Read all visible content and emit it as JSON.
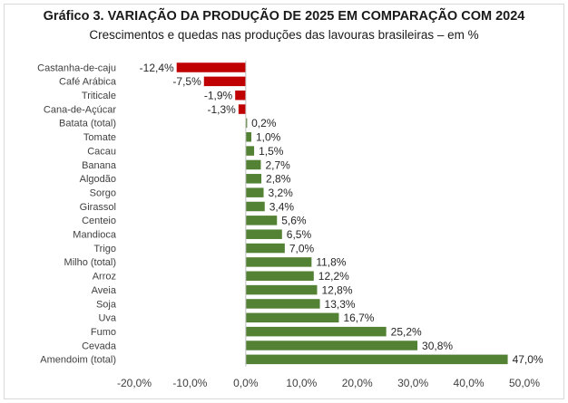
{
  "chart_data": {
    "type": "bar",
    "orientation": "horizontal",
    "title": "Gráfico 3. VARIAÇÃO DA PRODUÇÃO DE 2025 EM COMPARAÇÃO COM 2024",
    "subtitle": "Crescimentos e quedas nas produções das lavouras brasileiras – em %",
    "categories": [
      "Castanha-de-caju",
      "Café Arábica",
      "Triticale",
      "Cana-de-Açúcar",
      "Batata (total)",
      "Tomate",
      "Cacau",
      "Banana",
      "Algodão",
      "Sorgo",
      "Girassol",
      "Centeio",
      "Mandioca",
      "Trigo",
      "Milho (total)",
      "Arroz",
      "Aveia",
      "Soja",
      "Uva",
      "Fumo",
      "Cevada",
      "Amendoim (total)"
    ],
    "values": [
      -12.4,
      -7.5,
      -1.9,
      -1.3,
      0.2,
      1.0,
      1.5,
      2.7,
      2.8,
      3.2,
      3.4,
      5.6,
      6.5,
      7.0,
      11.8,
      12.2,
      12.8,
      13.3,
      16.7,
      25.2,
      30.8,
      47.0
    ],
    "value_labels": [
      "-12,4%",
      "-7,5%",
      "-1,9%",
      "-1,3%",
      "0,2%",
      "1,0%",
      "1,5%",
      "2,7%",
      "2,8%",
      "3,2%",
      "3,4%",
      "5,6%",
      "6,5%",
      "7,0%",
      "11,8%",
      "12,2%",
      "12,8%",
      "13,3%",
      "16,7%",
      "25,2%",
      "30,8%",
      "47,0%"
    ],
    "xlim": [
      -20,
      50
    ],
    "x_ticks": [
      -20,
      -10,
      0,
      10,
      20,
      30,
      40,
      50
    ],
    "x_tick_labels": [
      "-20,0%",
      "-10,0%",
      "0,0%",
      "10,0%",
      "20,0%",
      "30,0%",
      "40,0%",
      "50,0%"
    ],
    "xlabel": "",
    "ylabel": "",
    "grid": false,
    "legend": "none",
    "colors": {
      "negative": "#c00000",
      "positive": "#548235",
      "axis": "#bfbfbf"
    }
  }
}
